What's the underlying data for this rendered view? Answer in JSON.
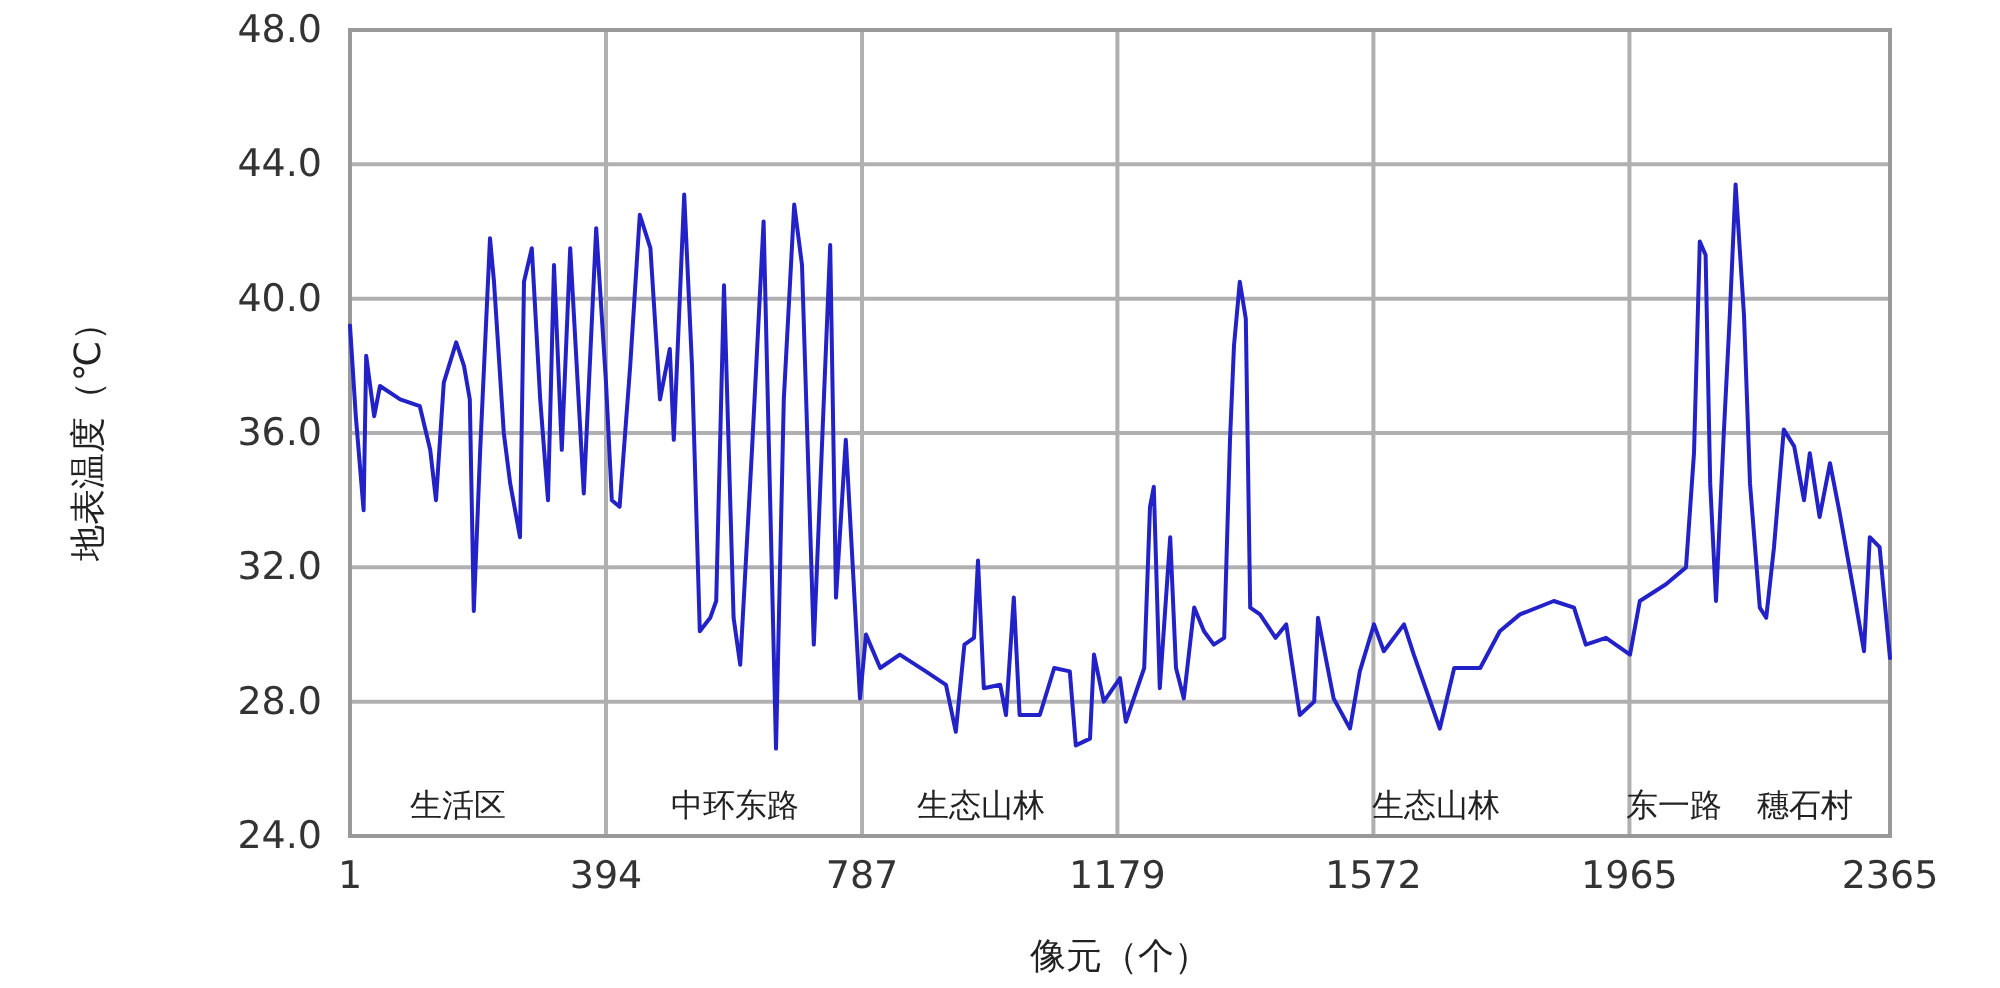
{
  "chart_data": {
    "type": "line",
    "xlabel": "像元（个）",
    "ylabel": "地表温度（℃）",
    "xlim": [
      1,
      2365
    ],
    "ylim": [
      24,
      48
    ],
    "xticks": [
      1,
      394,
      787,
      1179,
      1572,
      1965,
      2365
    ],
    "yticks": [
      {
        "value": 24,
        "label": "24.0"
      },
      {
        "value": 28,
        "label": "28.0"
      },
      {
        "value": 32,
        "label": "32.0"
      },
      {
        "value": 36,
        "label": "36.0"
      },
      {
        "value": 40,
        "label": "40.0"
      },
      {
        "value": 44,
        "label": "44.0"
      },
      {
        "value": 48,
        "label": "48.0"
      }
    ],
    "grid": true,
    "x": [
      1,
      10,
      22,
      26,
      38,
      47,
      78,
      108,
      124,
      133,
      145,
      164,
      176,
      185,
      191,
      201,
      216,
      222,
      237,
      247,
      262,
      268,
      280,
      293,
      305,
      314,
      326,
      339,
      360,
      379,
      394,
      403,
      415,
      431,
      446,
      462,
      477,
      492,
      498,
      514,
      526,
      538,
      554,
      563,
      575,
      590,
      600,
      618,
      636,
      655,
      667,
      683,
      695,
      713,
      738,
      747,
      762,
      784,
      793,
      815,
      845,
      885,
      916,
      931,
      944,
      959,
      965,
      974,
      999,
      1008,
      1020,
      1029,
      1060,
      1082,
      1106,
      1115,
      1137,
      1143,
      1158,
      1183,
      1192,
      1220,
      1229,
      1235,
      1244,
      1260,
      1269,
      1281,
      1297,
      1312,
      1327,
      1343,
      1352,
      1358,
      1367,
      1376,
      1383,
      1398,
      1422,
      1438,
      1459,
      1481,
      1487,
      1511,
      1536,
      1551,
      1573,
      1588,
      1619,
      1634,
      1674,
      1696,
      1736,
      1766,
      1797,
      1849,
      1880,
      1898,
      1929,
      1966,
      1981,
      2021,
      2052,
      2064,
      2073,
      2082,
      2089,
      2098,
      2110,
      2119,
      2128,
      2141,
      2150,
      2165,
      2175,
      2187,
      2202,
      2218,
      2233,
      2242,
      2257,
      2273,
      2288,
      2310,
      2325,
      2334,
      2349,
      2365
    ],
    "series": [
      {
        "color": "#2222c8",
        "values": [
          39.2,
          36.5,
          33.7,
          38.3,
          36.5,
          37.4,
          37.0,
          36.8,
          35.5,
          34.0,
          37.5,
          38.7,
          38.0,
          37.0,
          30.7,
          35.5,
          41.8,
          40.5,
          36.0,
          34.5,
          32.9,
          40.5,
          41.5,
          37.0,
          34.0,
          41.0,
          35.5,
          41.5,
          34.2,
          42.1,
          37.5,
          34.0,
          33.8,
          38.0,
          42.5,
          41.5,
          37.0,
          38.5,
          35.8,
          43.1,
          38.0,
          30.1,
          30.5,
          31.0,
          40.4,
          30.5,
          29.1,
          35.5,
          42.3,
          26.6,
          37.0,
          42.8,
          41.0,
          29.7,
          41.6,
          31.1,
          35.8,
          28.1,
          30.0,
          29.0,
          29.4,
          28.9,
          28.5,
          27.1,
          29.7,
          29.9,
          32.2,
          28.4,
          28.5,
          27.6,
          31.1,
          27.6,
          27.6,
          29.0,
          28.9,
          26.7,
          26.9,
          29.4,
          28.0,
          28.7,
          27.4,
          29.0,
          33.8,
          34.4,
          28.4,
          32.9,
          29.0,
          28.1,
          30.8,
          30.1,
          29.7,
          29.9,
          35.8,
          38.6,
          40.5,
          39.4,
          30.8,
          30.6,
          29.9,
          30.3,
          27.6,
          28.0,
          30.5,
          28.1,
          27.2,
          28.9,
          30.3,
          29.5,
          30.3,
          29.4,
          27.2,
          29.0,
          29.0,
          30.1,
          30.6,
          31.0,
          30.8,
          29.7,
          29.9,
          29.4,
          31.0,
          31.5,
          32.0,
          35.4,
          41.7,
          41.3,
          34.5,
          31.0,
          36.0,
          39.5,
          43.4,
          39.5,
          34.5,
          30.8,
          30.5,
          32.6,
          36.1,
          35.6,
          34.0,
          35.4,
          33.5,
          35.1,
          33.6,
          31.2,
          29.5,
          32.9,
          32.6,
          29.3
        ]
      }
    ],
    "annotations": [
      "生活区",
      "中环东路",
      "生态山林",
      "生态山林",
      "东一路",
      "穗石村"
    ]
  }
}
